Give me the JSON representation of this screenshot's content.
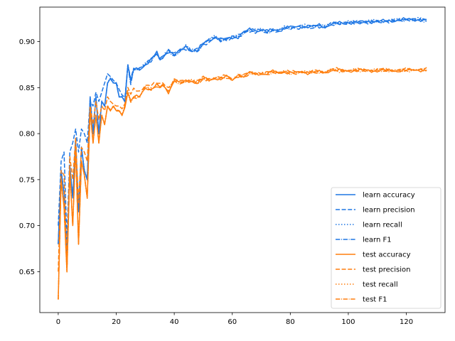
{
  "chart_data": {
    "type": "line",
    "title": "",
    "xlabel": "",
    "ylabel": "",
    "xlim": [
      -6.35,
      133.35
    ],
    "ylim": [
      0.6055,
      0.9375
    ],
    "xticks": [
      0,
      20,
      40,
      60,
      80,
      100,
      120
    ],
    "yticks": [
      0.65,
      0.7,
      0.75,
      0.8,
      0.85,
      0.9
    ],
    "ytick_labels": [
      "0.65",
      "0.70",
      "0.75",
      "0.80",
      "0.85",
      "0.90"
    ],
    "grid": false,
    "legend_position": "lower-right",
    "colors": {
      "learn": "#1f77e4",
      "test": "#ff7f0e"
    },
    "anchors": {
      "learn_accuracy": [
        [
          0,
          0.68
        ],
        [
          1,
          0.76
        ],
        [
          2,
          0.735
        ],
        [
          3,
          0.665
        ],
        [
          4,
          0.765
        ],
        [
          5,
          0.73
        ],
        [
          6,
          0.795
        ],
        [
          7,
          0.715
        ],
        [
          8,
          0.785
        ],
        [
          9,
          0.76
        ],
        [
          10,
          0.75
        ],
        [
          11,
          0.84
        ],
        [
          12,
          0.8
        ],
        [
          13,
          0.84
        ],
        [
          14,
          0.8
        ],
        [
          15,
          0.835
        ],
        [
          16,
          0.83
        ],
        [
          17,
          0.855
        ],
        [
          18,
          0.86
        ],
        [
          19,
          0.855
        ],
        [
          20,
          0.855
        ],
        [
          21,
          0.84
        ],
        [
          22,
          0.84
        ],
        [
          23,
          0.835
        ],
        [
          24,
          0.875
        ],
        [
          25,
          0.855
        ],
        [
          26,
          0.87
        ],
        [
          28,
          0.87
        ],
        [
          30,
          0.875
        ],
        [
          32,
          0.88
        ],
        [
          34,
          0.888
        ],
        [
          35,
          0.88
        ],
        [
          36,
          0.883
        ],
        [
          38,
          0.89
        ],
        [
          40,
          0.885
        ],
        [
          42,
          0.89
        ],
        [
          44,
          0.895
        ],
        [
          46,
          0.89
        ],
        [
          48,
          0.89
        ],
        [
          50,
          0.898
        ],
        [
          52,
          0.902
        ],
        [
          54,
          0.905
        ],
        [
          56,
          0.902
        ],
        [
          58,
          0.903
        ],
        [
          60,
          0.905
        ],
        [
          62,
          0.905
        ],
        [
          64,
          0.91
        ],
        [
          66,
          0.913
        ],
        [
          68,
          0.912
        ],
        [
          70,
          0.913
        ],
        [
          72,
          0.91
        ],
        [
          74,
          0.913
        ],
        [
          76,
          0.912
        ],
        [
          78,
          0.915
        ],
        [
          80,
          0.915
        ],
        [
          82,
          0.916
        ],
        [
          84,
          0.917
        ],
        [
          86,
          0.916
        ],
        [
          88,
          0.916
        ],
        [
          90,
          0.918
        ],
        [
          92,
          0.916
        ],
        [
          94,
          0.919
        ],
        [
          96,
          0.92
        ],
        [
          98,
          0.92
        ],
        [
          100,
          0.921
        ],
        [
          104,
          0.921
        ],
        [
          108,
          0.922
        ],
        [
          112,
          0.922
        ],
        [
          116,
          0.923
        ],
        [
          120,
          0.924
        ],
        [
          124,
          0.924
        ],
        [
          127,
          0.923
        ]
      ],
      "learn_precision": [
        [
          0,
          0.7
        ],
        [
          1,
          0.77
        ],
        [
          2,
          0.78
        ],
        [
          3,
          0.685
        ],
        [
          4,
          0.78
        ],
        [
          5,
          0.79
        ],
        [
          6,
          0.805
        ],
        [
          7,
          0.78
        ],
        [
          8,
          0.805
        ],
        [
          9,
          0.8
        ],
        [
          10,
          0.79
        ],
        [
          11,
          0.835
        ],
        [
          12,
          0.83
        ],
        [
          13,
          0.845
        ],
        [
          14,
          0.835
        ],
        [
          15,
          0.845
        ],
        [
          16,
          0.855
        ],
        [
          17,
          0.865
        ],
        [
          18,
          0.862
        ],
        [
          19,
          0.858
        ],
        [
          20,
          0.855
        ],
        [
          21,
          0.848
        ],
        [
          22,
          0.842
        ],
        [
          23,
          0.838
        ],
        [
          24,
          0.873
        ],
        [
          25,
          0.86
        ],
        [
          26,
          0.87
        ],
        [
          28,
          0.872
        ],
        [
          30,
          0.875
        ],
        [
          32,
          0.88
        ],
        [
          34,
          0.887
        ],
        [
          35,
          0.883
        ],
        [
          36,
          0.885
        ],
        [
          38,
          0.89
        ],
        [
          40,
          0.886
        ],
        [
          42,
          0.892
        ],
        [
          44,
          0.893
        ],
        [
          46,
          0.89
        ],
        [
          48,
          0.891
        ],
        [
          50,
          0.897
        ],
        [
          52,
          0.9
        ],
        [
          54,
          0.904
        ],
        [
          56,
          0.901
        ],
        [
          58,
          0.902
        ],
        [
          60,
          0.905
        ],
        [
          62,
          0.906
        ],
        [
          64,
          0.909
        ],
        [
          66,
          0.912
        ],
        [
          68,
          0.911
        ],
        [
          70,
          0.912
        ],
        [
          72,
          0.911
        ],
        [
          74,
          0.912
        ],
        [
          76,
          0.912
        ],
        [
          78,
          0.914
        ],
        [
          80,
          0.915
        ],
        [
          82,
          0.915
        ],
        [
          84,
          0.916
        ],
        [
          86,
          0.916
        ],
        [
          88,
          0.917
        ],
        [
          90,
          0.917
        ],
        [
          92,
          0.916
        ],
        [
          94,
          0.919
        ],
        [
          96,
          0.92
        ],
        [
          98,
          0.92
        ],
        [
          100,
          0.92
        ],
        [
          104,
          0.921
        ],
        [
          108,
          0.921
        ],
        [
          112,
          0.922
        ],
        [
          116,
          0.923
        ],
        [
          120,
          0.924
        ],
        [
          124,
          0.924
        ],
        [
          127,
          0.923
        ]
      ],
      "test_accuracy": [
        [
          0,
          0.62
        ],
        [
          1,
          0.75
        ],
        [
          2,
          0.72
        ],
        [
          3,
          0.65
        ],
        [
          4,
          0.76
        ],
        [
          5,
          0.7
        ],
        [
          6,
          0.785
        ],
        [
          7,
          0.68
        ],
        [
          8,
          0.77
        ],
        [
          9,
          0.755
        ],
        [
          10,
          0.73
        ],
        [
          11,
          0.825
        ],
        [
          12,
          0.79
        ],
        [
          13,
          0.82
        ],
        [
          14,
          0.79
        ],
        [
          15,
          0.82
        ],
        [
          16,
          0.81
        ],
        [
          17,
          0.83
        ],
        [
          18,
          0.825
        ],
        [
          19,
          0.83
        ],
        [
          20,
          0.825
        ],
        [
          21,
          0.825
        ],
        [
          22,
          0.82
        ],
        [
          23,
          0.83
        ],
        [
          24,
          0.845
        ],
        [
          25,
          0.835
        ],
        [
          26,
          0.84
        ],
        [
          28,
          0.84
        ],
        [
          30,
          0.85
        ],
        [
          32,
          0.848
        ],
        [
          34,
          0.853
        ],
        [
          35,
          0.85
        ],
        [
          36,
          0.853
        ],
        [
          38,
          0.845
        ],
        [
          40,
          0.858
        ],
        [
          42,
          0.855
        ],
        [
          44,
          0.857
        ],
        [
          46,
          0.857
        ],
        [
          48,
          0.855
        ],
        [
          50,
          0.86
        ],
        [
          52,
          0.858
        ],
        [
          54,
          0.86
        ],
        [
          56,
          0.86
        ],
        [
          58,
          0.862
        ],
        [
          60,
          0.858
        ],
        [
          62,
          0.863
        ],
        [
          64,
          0.862
        ],
        [
          66,
          0.866
        ],
        [
          68,
          0.865
        ],
        [
          70,
          0.865
        ],
        [
          72,
          0.865
        ],
        [
          74,
          0.867
        ],
        [
          76,
          0.866
        ],
        [
          78,
          0.867
        ],
        [
          80,
          0.866
        ],
        [
          82,
          0.866
        ],
        [
          84,
          0.867
        ],
        [
          86,
          0.866
        ],
        [
          88,
          0.867
        ],
        [
          90,
          0.867
        ],
        [
          92,
          0.866
        ],
        [
          94,
          0.869
        ],
        [
          96,
          0.869
        ],
        [
          98,
          0.868
        ],
        [
          100,
          0.868
        ],
        [
          104,
          0.869
        ],
        [
          108,
          0.868
        ],
        [
          112,
          0.869
        ],
        [
          116,
          0.868
        ],
        [
          120,
          0.869
        ],
        [
          124,
          0.869
        ],
        [
          127,
          0.869
        ]
      ],
      "test_precision": [
        [
          0,
          0.65
        ],
        [
          1,
          0.76
        ],
        [
          2,
          0.755
        ],
        [
          3,
          0.66
        ],
        [
          4,
          0.775
        ],
        [
          5,
          0.75
        ],
        [
          6,
          0.795
        ],
        [
          7,
          0.725
        ],
        [
          8,
          0.785
        ],
        [
          9,
          0.78
        ],
        [
          10,
          0.77
        ],
        [
          11,
          0.83
        ],
        [
          12,
          0.81
        ],
        [
          13,
          0.835
        ],
        [
          14,
          0.815
        ],
        [
          15,
          0.83
        ],
        [
          16,
          0.825
        ],
        [
          17,
          0.84
        ],
        [
          18,
          0.835
        ],
        [
          19,
          0.832
        ],
        [
          20,
          0.83
        ],
        [
          21,
          0.83
        ],
        [
          22,
          0.827
        ],
        [
          23,
          0.832
        ],
        [
          24,
          0.85
        ],
        [
          25,
          0.842
        ],
        [
          26,
          0.848
        ],
        [
          28,
          0.846
        ],
        [
          30,
          0.853
        ],
        [
          32,
          0.852
        ],
        [
          34,
          0.855
        ],
        [
          35,
          0.854
        ],
        [
          36,
          0.856
        ],
        [
          38,
          0.85
        ],
        [
          40,
          0.858
        ],
        [
          42,
          0.857
        ],
        [
          44,
          0.858
        ],
        [
          46,
          0.858
        ],
        [
          48,
          0.857
        ],
        [
          50,
          0.861
        ],
        [
          52,
          0.86
        ],
        [
          54,
          0.861
        ],
        [
          56,
          0.861
        ],
        [
          58,
          0.863
        ],
        [
          60,
          0.86
        ],
        [
          62,
          0.864
        ],
        [
          64,
          0.863
        ],
        [
          66,
          0.867
        ],
        [
          68,
          0.866
        ],
        [
          70,
          0.866
        ],
        [
          72,
          0.866
        ],
        [
          74,
          0.868
        ],
        [
          76,
          0.867
        ],
        [
          78,
          0.868
        ],
        [
          80,
          0.867
        ],
        [
          82,
          0.867
        ],
        [
          84,
          0.868
        ],
        [
          86,
          0.867
        ],
        [
          88,
          0.868
        ],
        [
          90,
          0.868
        ],
        [
          92,
          0.867
        ],
        [
          94,
          0.87
        ],
        [
          96,
          0.87
        ],
        [
          98,
          0.869
        ],
        [
          100,
          0.869
        ],
        [
          104,
          0.87
        ],
        [
          108,
          0.869
        ],
        [
          112,
          0.87
        ],
        [
          116,
          0.869
        ],
        [
          120,
          0.87
        ],
        [
          124,
          0.87
        ],
        [
          127,
          0.87
        ]
      ]
    },
    "series": [
      {
        "name": "learn accuracy",
        "group": "learn",
        "style": "solid",
        "source": "learn_accuracy",
        "offset": 0,
        "jitter": 0.0025
      },
      {
        "name": "learn precision",
        "group": "learn",
        "style": "dashed",
        "source": "learn_precision",
        "offset": 0,
        "jitter": 0.0025
      },
      {
        "name": "learn recall",
        "group": "learn",
        "style": "dotted",
        "source": "learn_accuracy",
        "offset": 0.0005,
        "jitter": 0.002
      },
      {
        "name": "learn F1",
        "group": "learn",
        "style": "dashdot",
        "source": "learn_accuracy",
        "offset": -0.0003,
        "jitter": 0.002
      },
      {
        "name": "test accuracy",
        "group": "test",
        "style": "solid",
        "source": "test_accuracy",
        "offset": 0,
        "jitter": 0.002
      },
      {
        "name": "test precision",
        "group": "test",
        "style": "dashed",
        "source": "test_precision",
        "offset": 0,
        "jitter": 0.002
      },
      {
        "name": "test recall",
        "group": "test",
        "style": "dotted",
        "source": "test_accuracy",
        "offset": 0.0005,
        "jitter": 0.0018
      },
      {
        "name": "test F1",
        "group": "test",
        "style": "dashdot",
        "source": "test_accuracy",
        "offset": -0.0004,
        "jitter": 0.0018
      }
    ]
  }
}
